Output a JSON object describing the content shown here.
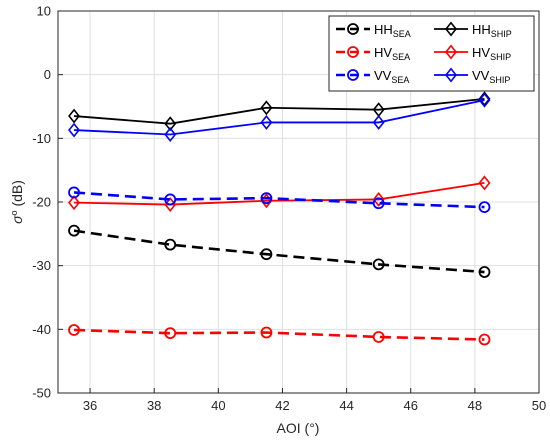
{
  "chart_data": {
    "type": "line",
    "xlabel": "AOI (°)",
    "ylabel_symbol": "σ",
    "ylabel_sup": "o",
    "ylabel_unit": " (dB)",
    "xlim": [
      35,
      50
    ],
    "ylim": [
      -50,
      10
    ],
    "xticks": [
      36,
      38,
      40,
      42,
      44,
      46,
      48,
      50
    ],
    "yticks": [
      10,
      0,
      -10,
      -20,
      -30,
      -40,
      -50
    ],
    "grid": true,
    "legend_position": "top-right",
    "x": [
      35.5,
      38.5,
      41.5,
      45,
      48.3
    ],
    "series": [
      {
        "name": "HH",
        "subscript": "SEA",
        "color": "#000000",
        "dash": true,
        "marker": "circle",
        "values": [
          -24.5,
          -26.7,
          -28.2,
          -29.8,
          -31.0
        ]
      },
      {
        "name": "HH",
        "subscript": "SHIP",
        "color": "#000000",
        "dash": false,
        "marker": "diamond",
        "values": [
          -6.5,
          -7.7,
          -5.2,
          -5.5,
          -3.8
        ]
      },
      {
        "name": "HV",
        "subscript": "SEA",
        "color": "#ff0000",
        "dash": true,
        "marker": "circle",
        "values": [
          -40.1,
          -40.6,
          -40.5,
          -41.2,
          -41.6
        ]
      },
      {
        "name": "HV",
        "subscript": "SHIP",
        "color": "#ff0000",
        "dash": false,
        "marker": "diamond",
        "values": [
          -20.1,
          -20.4,
          -19.8,
          -19.6,
          -17.0
        ]
      },
      {
        "name": "VV",
        "subscript": "SEA",
        "color": "#0000ff",
        "dash": true,
        "marker": "circle",
        "values": [
          -18.5,
          -19.6,
          -19.4,
          -20.2,
          -20.8
        ]
      },
      {
        "name": "VV",
        "subscript": "SHIP",
        "color": "#0000ff",
        "dash": false,
        "marker": "diamond",
        "values": [
          -8.7,
          -9.4,
          -7.5,
          -7.5,
          -4.0
        ]
      }
    ]
  }
}
